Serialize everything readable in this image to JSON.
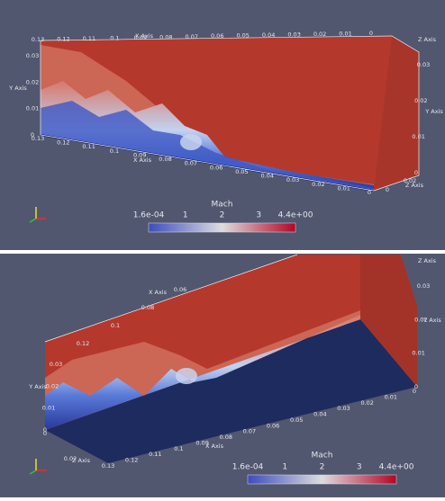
{
  "views": [
    {
      "x_axis_label": "X Axis",
      "y_axis_label": "Y Axis",
      "z_axis_label": "Z Axis",
      "x_ticks_top": [
        "0.13",
        "0.12",
        "0.11",
        "0.1",
        "0.09",
        "0.08",
        "0.07",
        "0.06",
        "0.05",
        "0.04",
        "0.03",
        "0.02",
        "0.01",
        "0"
      ],
      "x_ticks_bottom": [
        "0.13",
        "0.12",
        "0.11",
        "0.1",
        "0.09",
        "0.08",
        "0.07",
        "0.06",
        "0.05",
        "0.04",
        "0.03",
        "0.02",
        "0.01",
        "0"
      ],
      "y_ticks_left": [
        "0.03",
        "0.02",
        "0.01",
        "0"
      ],
      "y_ticks_right": [
        "0.03",
        "0.02",
        "0.01",
        "0"
      ],
      "z_ticks": [
        "0.02",
        "0"
      ],
      "colorbar": {
        "title": "Mach",
        "labels": [
          "1.6e-04",
          "1",
          "2",
          "3",
          "4.4e+00"
        ]
      }
    },
    {
      "x_axis_label": "X Axis",
      "y_axis_label": "Y Axis",
      "z_axis_label": "Z Axis",
      "x_ticks_top": [
        "0.12",
        "0.1",
        "0.08",
        "0.06"
      ],
      "x_ticks_bottom": [
        "0.13",
        "0.12",
        "0.11",
        "0.1",
        "0.09",
        "0.08",
        "0.07",
        "0.06",
        "0.05",
        "0.04",
        "0.03",
        "0.02",
        "0.01",
        "0"
      ],
      "y_ticks_left": [
        "0.03",
        "0.02",
        "0.01",
        "0"
      ],
      "y_ticks_right": [
        "0.03",
        "0.02",
        "0.01",
        "0"
      ],
      "z_ticks": [
        "0.02",
        "0"
      ],
      "colorbar": {
        "title": "Mach",
        "labels": [
          "1.6e-04",
          "1",
          "2",
          "3",
          "4.4e+00"
        ]
      }
    }
  ]
}
